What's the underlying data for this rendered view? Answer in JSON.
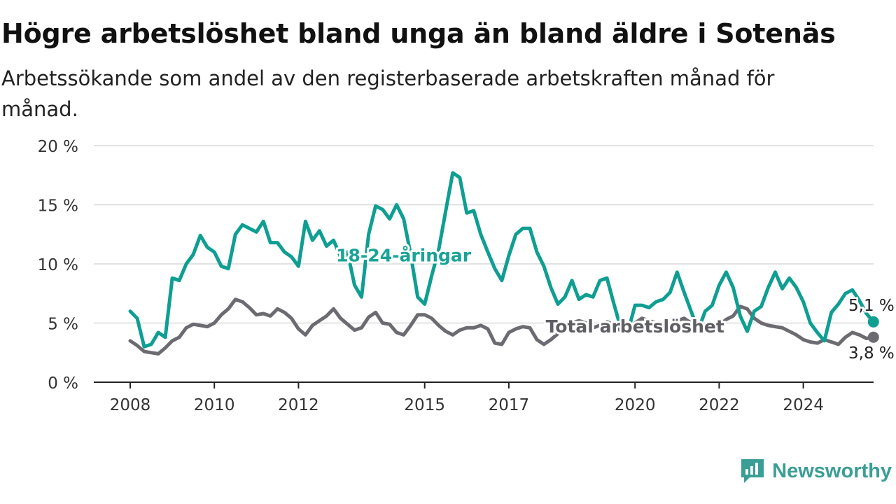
{
  "header": {
    "title": "Högre arbetslöshet bland unga än bland äldre i Sotenäs",
    "subtitle": "Arbetssökande som andel av den registerbaserade arbetskraften månad för månad."
  },
  "brand": {
    "name": "Newsworthy",
    "icon": "newsworthy-logo-icon",
    "color": "#3a9e96"
  },
  "chart_data": {
    "type": "line",
    "ylim": [
      0,
      20
    ],
    "yticks": [
      0,
      5,
      10,
      15,
      20
    ],
    "ytick_labels": [
      "0 %",
      "5 %",
      "10 %",
      "15 %",
      "20 %"
    ],
    "xlim": [
      "2007-07",
      "2025-12"
    ],
    "xticks": [
      "2008-01",
      "2010-01",
      "2012-01",
      "2015-01",
      "2017-01",
      "2020-01",
      "2022-01",
      "2024-01"
    ],
    "xtick_labels": [
      "2008",
      "2010",
      "2012",
      "2015",
      "2017",
      "2020",
      "2022",
      "2024"
    ],
    "grid": true,
    "series": [
      {
        "name": "18-24-åringar",
        "color": "#0f9e92",
        "end_label": "5,1 %",
        "points": [
          [
            "2008-01",
            6.0
          ],
          [
            "2008-03",
            5.4
          ],
          [
            "2008-05",
            3.0
          ],
          [
            "2008-07",
            3.2
          ],
          [
            "2008-09",
            4.2
          ],
          [
            "2008-11",
            3.8
          ],
          [
            "2009-01",
            8.8
          ],
          [
            "2009-03",
            8.6
          ],
          [
            "2009-05",
            10.0
          ],
          [
            "2009-07",
            10.8
          ],
          [
            "2009-09",
            12.4
          ],
          [
            "2009-11",
            11.4
          ],
          [
            "2010-01",
            11.0
          ],
          [
            "2010-03",
            9.8
          ],
          [
            "2010-05",
            9.6
          ],
          [
            "2010-07",
            12.5
          ],
          [
            "2010-09",
            13.3
          ],
          [
            "2010-11",
            13.0
          ],
          [
            "2011-01",
            12.7
          ],
          [
            "2011-03",
            13.6
          ],
          [
            "2011-05",
            11.8
          ],
          [
            "2011-07",
            11.8
          ],
          [
            "2011-09",
            11.0
          ],
          [
            "2011-11",
            10.6
          ],
          [
            "2012-01",
            9.8
          ],
          [
            "2012-03",
            13.6
          ],
          [
            "2012-05",
            12.0
          ],
          [
            "2012-07",
            12.8
          ],
          [
            "2012-09",
            11.5
          ],
          [
            "2012-11",
            12.0
          ],
          [
            "2013-01",
            10.6
          ],
          [
            "2013-03",
            11.0
          ],
          [
            "2013-05",
            8.2
          ],
          [
            "2013-07",
            7.2
          ],
          [
            "2013-09",
            12.5
          ],
          [
            "2013-11",
            14.9
          ],
          [
            "2014-01",
            14.6
          ],
          [
            "2014-03",
            13.8
          ],
          [
            "2014-05",
            15.0
          ],
          [
            "2014-07",
            13.8
          ],
          [
            "2014-09",
            10.8
          ],
          [
            "2014-11",
            7.2
          ],
          [
            "2015-01",
            6.6
          ],
          [
            "2015-03",
            9.0
          ],
          [
            "2015-05",
            11.2
          ],
          [
            "2015-07",
            14.5
          ],
          [
            "2015-09",
            17.7
          ],
          [
            "2015-11",
            17.3
          ],
          [
            "2016-01",
            14.3
          ],
          [
            "2016-03",
            14.5
          ],
          [
            "2016-05",
            12.5
          ],
          [
            "2016-07",
            11.0
          ],
          [
            "2016-09",
            9.6
          ],
          [
            "2016-11",
            8.6
          ],
          [
            "2017-01",
            10.7
          ],
          [
            "2017-03",
            12.5
          ],
          [
            "2017-05",
            13.0
          ],
          [
            "2017-07",
            13.0
          ],
          [
            "2017-09",
            11.0
          ],
          [
            "2017-11",
            9.8
          ],
          [
            "2018-01",
            8.0
          ],
          [
            "2018-03",
            6.6
          ],
          [
            "2018-05",
            7.2
          ],
          [
            "2018-07",
            8.6
          ],
          [
            "2018-09",
            7.0
          ],
          [
            "2018-11",
            7.4
          ],
          [
            "2019-01",
            7.2
          ],
          [
            "2019-03",
            8.6
          ],
          [
            "2019-05",
            8.8
          ],
          [
            "2019-07",
            6.6
          ],
          [
            "2019-09",
            4.5
          ],
          [
            "2019-11",
            4.3
          ],
          [
            "2020-01",
            6.5
          ],
          [
            "2020-03",
            6.5
          ],
          [
            "2020-05",
            6.3
          ],
          [
            "2020-07",
            6.8
          ],
          [
            "2020-09",
            7.0
          ],
          [
            "2020-11",
            7.6
          ],
          [
            "2021-01",
            9.3
          ],
          [
            "2021-03",
            7.6
          ],
          [
            "2021-05",
            6.0
          ],
          [
            "2021-07",
            4.4
          ],
          [
            "2021-09",
            6.0
          ],
          [
            "2021-11",
            6.5
          ],
          [
            "2022-01",
            8.2
          ],
          [
            "2022-03",
            9.3
          ],
          [
            "2022-05",
            8.0
          ],
          [
            "2022-07",
            5.6
          ],
          [
            "2022-09",
            4.3
          ],
          [
            "2022-11",
            6.0
          ],
          [
            "2023-01",
            6.4
          ],
          [
            "2023-03",
            8.0
          ],
          [
            "2023-05",
            9.3
          ],
          [
            "2023-07",
            7.9
          ],
          [
            "2023-09",
            8.8
          ],
          [
            "2023-11",
            8.0
          ],
          [
            "2024-01",
            6.8
          ],
          [
            "2024-03",
            5.0
          ],
          [
            "2024-05",
            4.2
          ],
          [
            "2024-07",
            3.5
          ],
          [
            "2024-09",
            5.9
          ],
          [
            "2024-11",
            6.6
          ],
          [
            "2025-01",
            7.5
          ],
          [
            "2025-03",
            7.8
          ],
          [
            "2025-05",
            6.9
          ],
          [
            "2025-07",
            5.8
          ],
          [
            "2025-09",
            5.1
          ]
        ]
      },
      {
        "name": "Total arbetslöshet",
        "color": "#6c6b71",
        "end_label": "3,8 %",
        "points": [
          [
            "2008-01",
            3.5
          ],
          [
            "2008-03",
            3.1
          ],
          [
            "2008-05",
            2.6
          ],
          [
            "2008-07",
            2.5
          ],
          [
            "2008-09",
            2.4
          ],
          [
            "2008-11",
            2.9
          ],
          [
            "2009-01",
            3.5
          ],
          [
            "2009-03",
            3.8
          ],
          [
            "2009-05",
            4.6
          ],
          [
            "2009-07",
            4.9
          ],
          [
            "2009-09",
            4.8
          ],
          [
            "2009-11",
            4.7
          ],
          [
            "2010-01",
            5.0
          ],
          [
            "2010-03",
            5.7
          ],
          [
            "2010-05",
            6.2
          ],
          [
            "2010-07",
            7.0
          ],
          [
            "2010-09",
            6.8
          ],
          [
            "2010-11",
            6.3
          ],
          [
            "2011-01",
            5.7
          ],
          [
            "2011-03",
            5.8
          ],
          [
            "2011-05",
            5.6
          ],
          [
            "2011-07",
            6.2
          ],
          [
            "2011-09",
            5.9
          ],
          [
            "2011-11",
            5.4
          ],
          [
            "2012-01",
            4.5
          ],
          [
            "2012-03",
            4.0
          ],
          [
            "2012-05",
            4.8
          ],
          [
            "2012-07",
            5.2
          ],
          [
            "2012-09",
            5.6
          ],
          [
            "2012-11",
            6.2
          ],
          [
            "2013-01",
            5.4
          ],
          [
            "2013-03",
            4.9
          ],
          [
            "2013-05",
            4.4
          ],
          [
            "2013-07",
            4.6
          ],
          [
            "2013-09",
            5.5
          ],
          [
            "2013-11",
            5.9
          ],
          [
            "2014-01",
            5.0
          ],
          [
            "2014-03",
            4.9
          ],
          [
            "2014-05",
            4.2
          ],
          [
            "2014-07",
            4.0
          ],
          [
            "2014-09",
            4.8
          ],
          [
            "2014-11",
            5.7
          ],
          [
            "2015-01",
            5.7
          ],
          [
            "2015-03",
            5.4
          ],
          [
            "2015-05",
            4.8
          ],
          [
            "2015-07",
            4.3
          ],
          [
            "2015-09",
            4.0
          ],
          [
            "2015-11",
            4.4
          ],
          [
            "2016-01",
            4.6
          ],
          [
            "2016-03",
            4.6
          ],
          [
            "2016-05",
            4.8
          ],
          [
            "2016-07",
            4.5
          ],
          [
            "2016-09",
            3.3
          ],
          [
            "2016-11",
            3.2
          ],
          [
            "2017-01",
            4.2
          ],
          [
            "2017-03",
            4.5
          ],
          [
            "2017-05",
            4.7
          ],
          [
            "2017-07",
            4.6
          ],
          [
            "2017-09",
            3.6
          ],
          [
            "2017-11",
            3.2
          ],
          [
            "2018-01",
            3.6
          ],
          [
            "2018-03",
            4.1
          ],
          [
            "2018-05",
            4.5
          ],
          [
            "2018-07",
            5.0
          ],
          [
            "2018-09",
            5.2
          ],
          [
            "2018-11",
            5.0
          ],
          [
            "2019-01",
            4.6
          ],
          [
            "2019-03",
            4.8
          ],
          [
            "2019-05",
            5.1
          ],
          [
            "2019-07",
            4.9
          ],
          [
            "2019-09",
            4.3
          ],
          [
            "2019-11",
            4.2
          ],
          [
            "2020-01",
            5.0
          ],
          [
            "2020-03",
            5.4
          ],
          [
            "2020-05",
            5.2
          ],
          [
            "2020-07",
            5.0
          ],
          [
            "2020-09",
            4.5
          ],
          [
            "2020-11",
            4.3
          ],
          [
            "2021-01",
            5.2
          ],
          [
            "2021-03",
            5.4
          ],
          [
            "2021-05",
            5.0
          ],
          [
            "2021-07",
            4.6
          ],
          [
            "2021-09",
            4.9
          ],
          [
            "2021-11",
            5.0
          ],
          [
            "2022-01",
            4.8
          ],
          [
            "2022-03",
            5.3
          ],
          [
            "2022-05",
            5.6
          ],
          [
            "2022-07",
            6.4
          ],
          [
            "2022-09",
            6.2
          ],
          [
            "2022-11",
            5.4
          ],
          [
            "2023-01",
            5.0
          ],
          [
            "2023-03",
            4.8
          ],
          [
            "2023-05",
            4.7
          ],
          [
            "2023-07",
            4.6
          ],
          [
            "2023-09",
            4.3
          ],
          [
            "2023-11",
            4.0
          ],
          [
            "2024-01",
            3.6
          ],
          [
            "2024-03",
            3.4
          ],
          [
            "2024-05",
            3.3
          ],
          [
            "2024-07",
            3.6
          ],
          [
            "2024-09",
            3.4
          ],
          [
            "2024-11",
            3.2
          ],
          [
            "2025-01",
            3.8
          ],
          [
            "2025-03",
            4.2
          ],
          [
            "2025-05",
            4.0
          ],
          [
            "2025-07",
            3.7
          ],
          [
            "2025-09",
            3.8
          ]
        ]
      }
    ],
    "annotations": [
      {
        "text": "18-24-åringar",
        "x": "2014-07",
        "y": 10.2,
        "series": 0
      },
      {
        "text": "Total arbetslöshet",
        "x": "2020-01",
        "y": 4.2,
        "series": 1
      }
    ]
  }
}
